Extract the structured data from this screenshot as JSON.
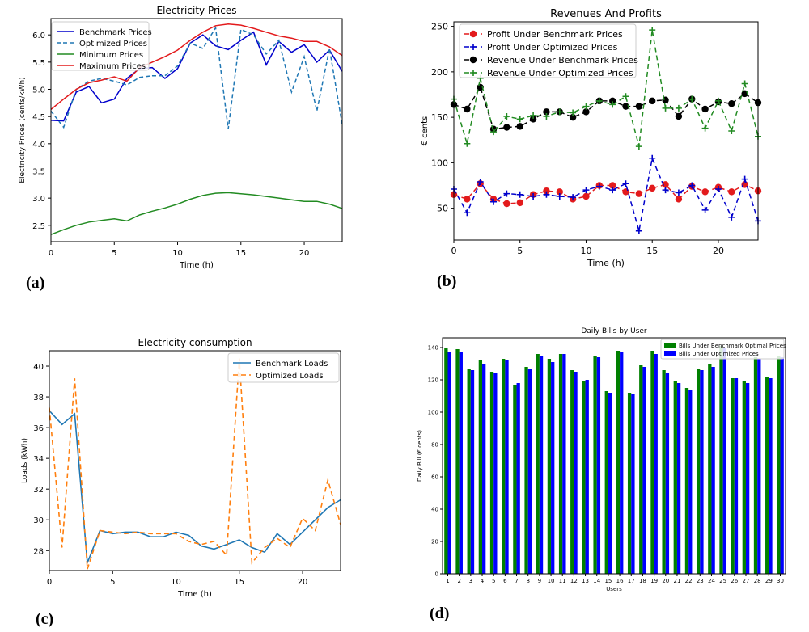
{
  "colors": {
    "blue": "#0000cc",
    "steel": "#1f77b4",
    "green": "#228B22",
    "red": "#e31a1c",
    "orange": "#ff7f0e",
    "black": "#000000",
    "bar_green": "#008000",
    "bar_blue": "#0000ff"
  },
  "panel_labels": [
    "(a)",
    "(b)",
    "(c)",
    "(d)"
  ],
  "chart_data": [
    {
      "type": "line",
      "title": "Electricity Prices",
      "xlabel": "Time (h)",
      "ylabel": "Electricity Prices (cents/kWh)",
      "xlim": [
        0,
        23
      ],
      "ylim": [
        2.2,
        6.3
      ],
      "xticks": [
        0,
        5,
        10,
        15,
        20
      ],
      "yticks": [
        "2.5",
        "3.0",
        "3.5",
        "4.0",
        "4.5",
        "5.0",
        "5.5",
        "6.0"
      ],
      "legend_position": "top-left",
      "x": [
        0,
        1,
        2,
        3,
        4,
        5,
        6,
        7,
        8,
        9,
        10,
        11,
        12,
        13,
        14,
        15,
        16,
        17,
        18,
        19,
        20,
        21,
        22,
        23
      ],
      "series": [
        {
          "name": "Benchmark Prices",
          "values": [
            4.43,
            4.42,
            4.95,
            5.05,
            4.75,
            4.82,
            5.2,
            5.38,
            5.4,
            5.2,
            5.38,
            5.85,
            6.0,
            5.8,
            5.73,
            5.9,
            6.05,
            5.45,
            5.88,
            5.68,
            5.82,
            5.5,
            5.72,
            5.33
          ]
        },
        {
          "name": "Optimized Prices",
          "values": [
            4.6,
            4.3,
            5.0,
            5.15,
            5.2,
            5.15,
            5.08,
            5.22,
            5.25,
            5.25,
            5.43,
            5.85,
            5.75,
            6.13,
            4.27,
            6.1,
            6.0,
            5.65,
            5.9,
            4.95,
            5.6,
            4.6,
            5.75,
            4.35
          ]
        },
        {
          "name": "Minimum Prices",
          "values": [
            2.33,
            2.42,
            2.5,
            2.56,
            2.59,
            2.62,
            2.58,
            2.69,
            2.76,
            2.82,
            2.89,
            2.98,
            3.05,
            3.09,
            3.1,
            3.08,
            3.06,
            3.03,
            3.0,
            2.97,
            2.94,
            2.94,
            2.89,
            2.81
          ]
        },
        {
          "name": "Maximum Prices",
          "values": [
            4.63,
            4.82,
            5.0,
            5.12,
            5.17,
            5.23,
            5.15,
            5.4,
            5.5,
            5.6,
            5.72,
            5.9,
            6.05,
            6.17,
            6.2,
            6.18,
            6.12,
            6.05,
            5.98,
            5.94,
            5.88,
            5.88,
            5.78,
            5.62
          ]
        }
      ]
    },
    {
      "type": "line",
      "title": "Revenues And Profits",
      "xlabel": "Time (h)",
      "ylabel": "€ cents",
      "xlim": [
        0,
        23
      ],
      "ylim": [
        15,
        255
      ],
      "xticks": [
        0,
        5,
        10,
        15,
        20
      ],
      "yticks": [
        "50",
        "100",
        "150",
        "200",
        "250"
      ],
      "legend_position": "top-left",
      "x": [
        0,
        1,
        2,
        3,
        4,
        5,
        6,
        7,
        8,
        9,
        10,
        11,
        12,
        13,
        14,
        15,
        16,
        17,
        18,
        19,
        20,
        21,
        22,
        23
      ],
      "series": [
        {
          "name": "Profit Under Benchmark Prices",
          "values": [
            65,
            60,
            77,
            60,
            55,
            56,
            65,
            69,
            68,
            60,
            63,
            75,
            75,
            68,
            66,
            72,
            76,
            60,
            74,
            68,
            73,
            68,
            76,
            69
          ]
        },
        {
          "name": "Profit Under Optimized Prices",
          "values": [
            71,
            45,
            79,
            57,
            66,
            65,
            63,
            65,
            63,
            62,
            70,
            74,
            70,
            77,
            25,
            105,
            70,
            67,
            75,
            48,
            71,
            40,
            82,
            36
          ]
        },
        {
          "name": "Revenue Under Benchmark Prices",
          "values": [
            164,
            159,
            183,
            137,
            139,
            140,
            148,
            156,
            156,
            150,
            156,
            168,
            168,
            162,
            162,
            168,
            169,
            151,
            170,
            159,
            167,
            165,
            176,
            166
          ]
        },
        {
          "name": "Revenue Under Optimized Prices",
          "values": [
            170,
            121,
            193,
            134,
            151,
            148,
            152,
            151,
            156,
            155,
            162,
            168,
            164,
            173,
            118,
            246,
            160,
            160,
            170,
            138,
            168,
            135,
            187,
            129
          ]
        }
      ]
    },
    {
      "type": "line",
      "title": "Electricity consumption",
      "xlabel": "Time (h)",
      "ylabel": "Loads (kWh)",
      "xlim": [
        0,
        23
      ],
      "ylim": [
        26.7,
        41
      ],
      "xticks": [
        0,
        5,
        10,
        15,
        20
      ],
      "yticks": [
        "28",
        "30",
        "32",
        "34",
        "36",
        "38",
        "40"
      ],
      "legend_position": "top-right",
      "x": [
        0,
        1,
        2,
        3,
        4,
        5,
        6,
        7,
        8,
        9,
        10,
        11,
        12,
        13,
        14,
        15,
        16,
        17,
        18,
        19,
        20,
        21,
        22,
        23
      ],
      "series": [
        {
          "name": "Benchmark Loads",
          "values": [
            37.1,
            36.2,
            36.9,
            27.2,
            29.3,
            29.1,
            29.2,
            29.2,
            28.9,
            28.9,
            29.2,
            29.0,
            28.3,
            28.1,
            28.4,
            28.7,
            28.2,
            27.9,
            29.1,
            28.4,
            29.2,
            30.0,
            30.8,
            31.3
          ]
        },
        {
          "name": "Optimized Loads",
          "values": [
            37.3,
            28.2,
            39.2,
            26.8,
            29.3,
            29.2,
            29.1,
            29.2,
            29.1,
            29.1,
            29.1,
            28.6,
            28.4,
            28.6,
            27.7,
            40.5,
            27.2,
            28.2,
            28.8,
            28.2,
            30.1,
            29.3,
            32.6,
            29.7
          ]
        }
      ]
    },
    {
      "type": "bar",
      "title": "Daily Bills by User",
      "xlabel": "Users",
      "ylabel": "Daily Bill (€ cents)",
      "ylim": [
        0,
        146
      ],
      "yticks": [
        "0",
        "20",
        "40",
        "60",
        "80",
        "100",
        "120",
        "140"
      ],
      "legend_position": "top-right",
      "categories": [
        "1",
        "2",
        "3",
        "4",
        "5",
        "6",
        "7",
        "8",
        "9",
        "10",
        "11",
        "12",
        "13",
        "14",
        "15",
        "16",
        "17",
        "18",
        "19",
        "20",
        "21",
        "22",
        "23",
        "24",
        "25",
        "26",
        "27",
        "28",
        "29",
        "30"
      ],
      "series": [
        {
          "name": "Bills Under Benchmark Optimal Prices",
          "values": [
            140,
            139,
            127,
            132,
            125,
            133,
            117,
            128,
            136,
            133,
            136,
            126,
            119,
            135,
            113,
            138,
            112,
            129,
            138,
            126,
            119,
            115,
            127,
            130,
            141,
            121,
            119,
            134,
            122,
            135
          ]
        },
        {
          "name": "Bills Under Optimized Prices",
          "values": [
            137,
            137,
            126,
            130,
            124,
            132,
            118,
            127,
            135,
            131,
            136,
            125,
            120,
            134,
            112,
            137,
            111,
            128,
            136,
            124,
            118,
            114,
            126,
            128,
            140,
            121,
            118,
            133,
            121,
            134
          ]
        }
      ]
    }
  ]
}
